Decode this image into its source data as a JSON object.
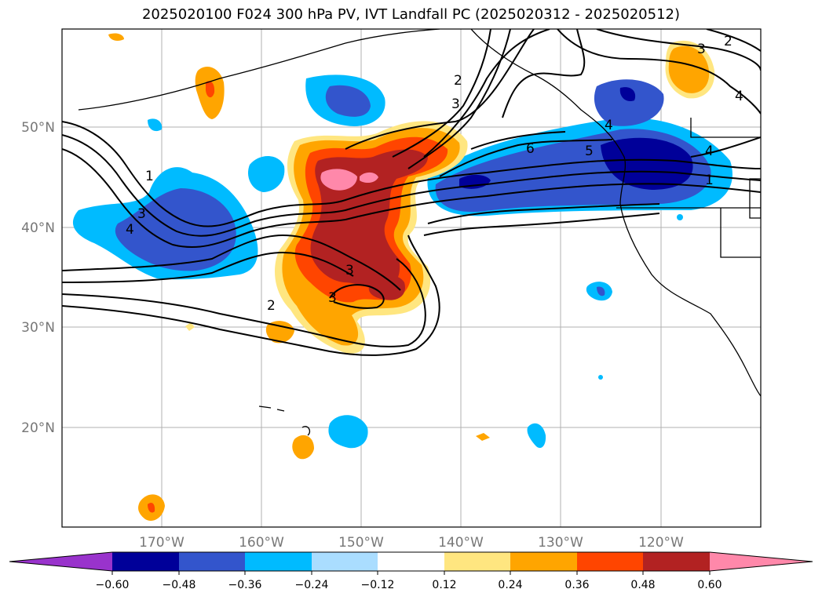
{
  "title": "2025020100 F024 300 hPa PV, IVT Landfall PC (2025020312 - 2025020512)",
  "lat_labels": [
    "50°N",
    "40°N",
    "30°N",
    "20°N"
  ],
  "lon_labels": [
    "170°W",
    "160°W",
    "150°W",
    "140°W",
    "130°W",
    "120°W"
  ],
  "colorbar": {
    "colors": [
      "#9933cc",
      "#000099",
      "#3355cc",
      "#00bbff",
      "#aaddff",
      "#ffffff",
      "#ffe680",
      "#ffa500",
      "#ff4500",
      "#b22222",
      "#ff88aa",
      "#ff88aa"
    ],
    "tick_labels": [
      "−0.60",
      "−0.48",
      "−0.36",
      "−0.24",
      "−0.12",
      "0.12",
      "0.24",
      "0.36",
      "0.48",
      "0.60"
    ]
  },
  "contour_labels": [
    "2",
    "3",
    "3",
    "1",
    "3",
    "4",
    "6",
    "5",
    "4",
    "1",
    "3",
    "4",
    "2",
    "3",
    "4",
    "2"
  ]
}
